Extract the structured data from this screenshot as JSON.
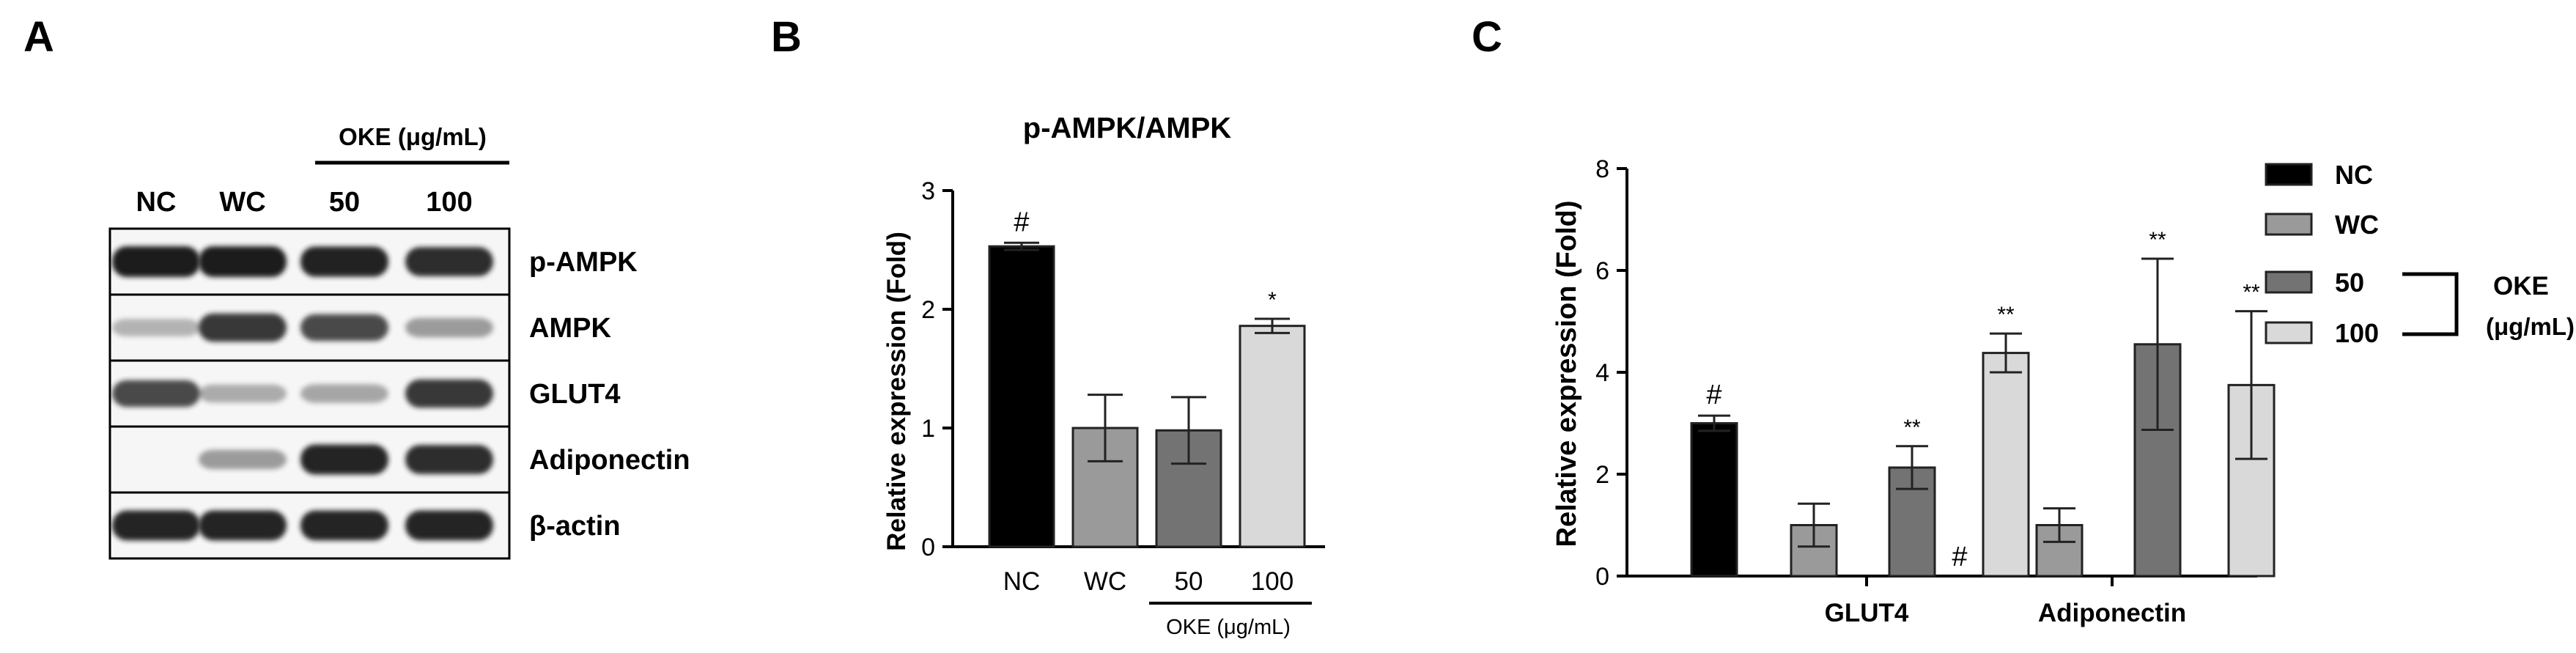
{
  "panels": {
    "A": {
      "letter": "A"
    },
    "B": {
      "letter": "B"
    },
    "C": {
      "letter": "C"
    }
  },
  "colors": {
    "NC": "#000000",
    "WC": "#9a9a9a",
    "50": "#737373",
    "100": "#d9d9d9",
    "band": "#1a1a1a"
  },
  "western_blot": {
    "treatment_group": "OKE (μg/mL)",
    "lanes": [
      "NC",
      "WC",
      "50",
      "100"
    ],
    "proteins": [
      "p-AMPK",
      "AMPK",
      "GLUT4",
      "Adiponectin",
      "β-actin"
    ],
    "band_intensity": [
      [
        1.0,
        1.0,
        0.97,
        0.9
      ],
      [
        0.18,
        0.85,
        0.75,
        0.3
      ],
      [
        0.75,
        0.22,
        0.25,
        0.85
      ],
      [
        0.0,
        0.3,
        0.95,
        0.9
      ],
      [
        0.95,
        0.95,
        0.95,
        0.95
      ]
    ]
  },
  "chart_data": [
    {
      "type": "bar",
      "title": "p-AMPK/AMPK",
      "xlabel": "",
      "ylabel": "Relative expression (Fold)",
      "ylim": [
        0,
        3
      ],
      "yticks": [
        0,
        1,
        2,
        3
      ],
      "categories": [
        "NC",
        "WC",
        "50",
        "100"
      ],
      "values": [
        2.53,
        1.0,
        0.98,
        1.86
      ],
      "errors": [
        0.03,
        0.28,
        0.28,
        0.06
      ],
      "annotations": [
        "#",
        "",
        "",
        "*"
      ],
      "bracket_label": "OKE (μg/mL)",
      "grid": false
    },
    {
      "type": "bar",
      "title": "",
      "xlabel": "",
      "ylabel": "Relative expression (Fold)",
      "ylim": [
        0,
        8
      ],
      "yticks": [
        0,
        2,
        4,
        6,
        8
      ],
      "categories": [
        "GLUT4",
        "Adiponectin"
      ],
      "series": [
        {
          "name": "NC",
          "values": [
            3.0,
            0.0
          ],
          "errors": [
            0.15,
            0.0
          ],
          "annotations": [
            "#",
            "#"
          ]
        },
        {
          "name": "WC",
          "values": [
            1.0,
            1.0
          ],
          "errors": [
            0.42,
            0.33
          ],
          "annotations": [
            "",
            ""
          ]
        },
        {
          "name": "50",
          "values": [
            2.13,
            4.55
          ],
          "errors": [
            0.42,
            1.68
          ],
          "annotations": [
            "**",
            "**"
          ]
        },
        {
          "name": "100",
          "values": [
            4.38,
            3.75
          ],
          "errors": [
            0.38,
            1.45
          ],
          "annotations": [
            "**",
            "**"
          ]
        }
      ],
      "legend": {
        "position": "right",
        "group_label": [
          "OKE",
          "(μg/mL)"
        ]
      },
      "grid": false
    }
  ]
}
